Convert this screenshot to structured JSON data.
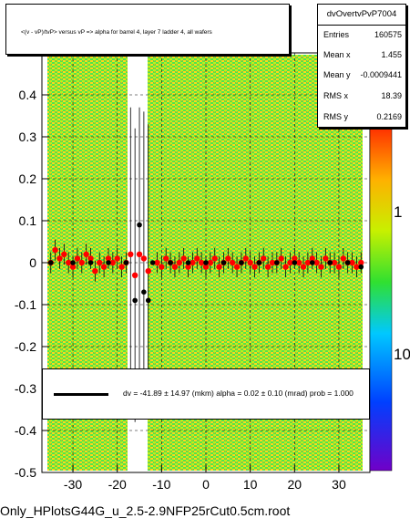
{
  "title": "<(v - vP)/tvP> versus   vP => alpha for barrel 4, layer 7 ladder 4, all wafers",
  "stats": {
    "name": "dvOvertvPvP7004",
    "rows": [
      {
        "k": "Entries",
        "v": "160575"
      },
      {
        "k": "Mean x",
        "v": "1.455"
      },
      {
        "k": "Mean y",
        "v": "-0.0009441"
      },
      {
        "k": "RMS x",
        "v": "18.39"
      },
      {
        "k": "RMS y",
        "v": "0.2169"
      }
    ]
  },
  "fit_text": "dv =  -41.89 ±  14.97 (mkm) alpha =    0.02 ±   0.10 (mrad) prob = 1.000",
  "footer": "Only_HPlotsG44G_u_2.5-2.9NFP25rCut0.5cm.root",
  "colors": {
    "red_points": "#ff0000",
    "black_points": "#000000",
    "high": "#ff6a00",
    "mid": "#c8e600",
    "low": "#28e632"
  },
  "chart_data": {
    "type": "scatter",
    "xlim": [
      -37,
      37
    ],
    "ylim": [
      -0.5,
      0.5
    ],
    "x_ticks": [
      "-30",
      "-20",
      "-10",
      "0",
      "10",
      "20",
      "30"
    ],
    "y_ticks": [
      "-0.5",
      "-0.4",
      "-0.3",
      "-0.2",
      "-0.1",
      "0",
      "0.1",
      "0.2",
      "0.3",
      "0.4"
    ],
    "y_tick_values": [
      -0.5,
      -0.4,
      -0.3,
      -0.2,
      -0.1,
      0,
      0.1,
      0.2,
      0.3,
      0.4
    ],
    "x_tick_values": [
      -30,
      -20,
      -10,
      0,
      10,
      20,
      30
    ],
    "z_ticks": [
      "1",
      "10"
    ],
    "grid": true,
    "red_series": {
      "x": [
        -35,
        -34,
        -33,
        -32,
        -31,
        -30,
        -29,
        -28,
        -27,
        -26,
        -25,
        -24,
        -23,
        -22,
        -21,
        -20,
        -19,
        -18,
        -17,
        -16,
        -15,
        -14,
        -13,
        -11,
        -10,
        -9,
        -8,
        -7,
        -6,
        -5,
        -4,
        -3,
        -2,
        -1,
        0,
        1,
        2,
        3,
        4,
        5,
        6,
        7,
        8,
        9,
        10,
        11,
        12,
        13,
        14,
        15,
        16,
        17,
        18,
        19,
        20,
        21,
        22,
        23,
        24,
        25,
        26,
        27,
        28,
        29,
        30,
        31,
        32,
        33,
        34,
        35
      ],
      "y": [
        0.0,
        0.03,
        0.01,
        0.02,
        0.0,
        -0.01,
        0.01,
        0.0,
        0.02,
        0.01,
        -0.02,
        0.0,
        -0.01,
        0.01,
        0.0,
        0.01,
        -0.01,
        0.0,
        0.02,
        -0.03,
        0.02,
        0.01,
        -0.02,
        0.0,
        -0.01,
        0.01,
        0.0,
        -0.01,
        0.0,
        0.01,
        -0.01,
        0.0,
        0.01,
        0.0,
        -0.01,
        0.0,
        0.01,
        -0.01,
        0.0,
        0.01,
        0.0,
        -0.01,
        0.0,
        0.01,
        0.0,
        -0.01,
        0.0,
        0.01,
        -0.01,
        0.0,
        0.0,
        0.01,
        -0.01,
        0.0,
        0.01,
        0.0,
        -0.01,
        0.0,
        0.01,
        0.0,
        -0.01,
        0.01,
        0.0,
        0.0,
        -0.01,
        0.01,
        0.0,
        0.0,
        -0.01,
        0.0
      ]
    },
    "black_series": {
      "x": [
        -35,
        -30,
        -26,
        -22,
        -18,
        -16,
        -15,
        -14,
        -13,
        -12,
        -8,
        -4,
        0,
        4,
        8,
        12,
        16,
        20,
        24,
        28,
        32,
        35
      ],
      "y": [
        0.0,
        0.0,
        0.0,
        0.0,
        0.0,
        -0.09,
        0.09,
        -0.07,
        -0.09,
        0.0,
        0.0,
        0.0,
        0.0,
        0.0,
        0.0,
        0.0,
        0.0,
        0.0,
        0.0,
        0.0,
        0.0,
        -0.01
      ]
    }
  }
}
